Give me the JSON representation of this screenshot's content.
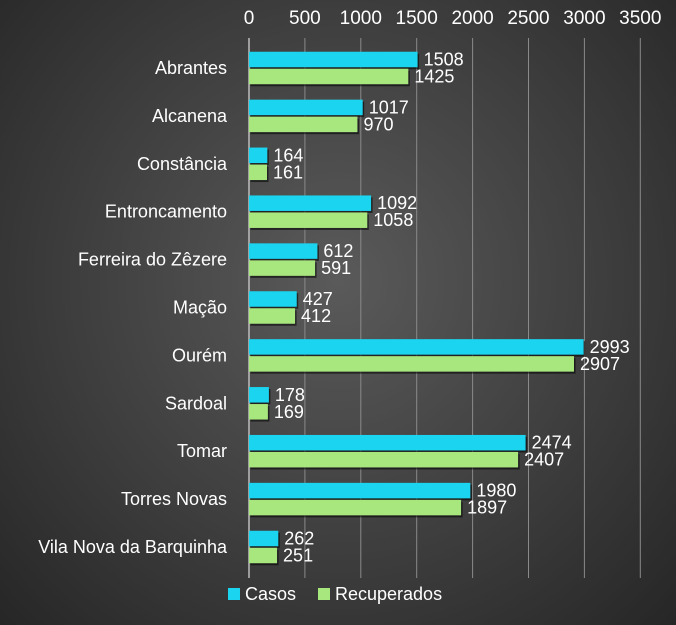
{
  "chart_data": {
    "type": "bar",
    "orientation": "horizontal",
    "categories": [
      "Abrantes",
      "Alcanena",
      "Constância",
      "Entroncamento",
      "Ferreira do Zêzere",
      "Mação",
      "Ourém",
      "Sardoal",
      "Tomar",
      "Torres Novas",
      "Vila Nova da Barquinha"
    ],
    "series": [
      {
        "name": "Casos",
        "color": "#1ad4f0",
        "values": [
          1508,
          1017,
          164,
          1092,
          612,
          427,
          2993,
          178,
          2474,
          1980,
          262
        ]
      },
      {
        "name": "Recuperados",
        "color": "#a8e67e",
        "values": [
          1425,
          970,
          161,
          1058,
          591,
          412,
          2907,
          169,
          2407,
          1897,
          251
        ]
      }
    ],
    "xlim": [
      0,
      3500
    ],
    "xticks": [
      0,
      500,
      1000,
      1500,
      2000,
      2500,
      3000,
      3500
    ],
    "xaxis_position": "top",
    "grid": true,
    "legend": "bottom",
    "title": "",
    "xlabel": "",
    "ylabel": ""
  }
}
